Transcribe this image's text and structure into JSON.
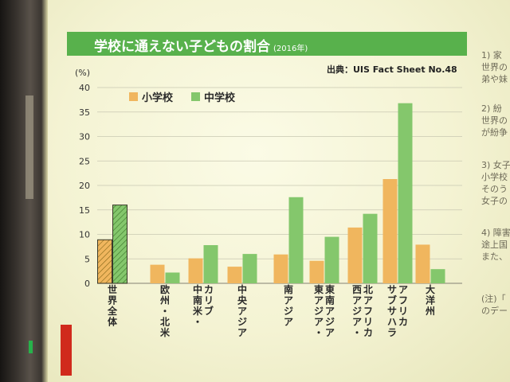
{
  "slide": {
    "title": "学校に通えない子どもの割合",
    "title_year": "(2016年)",
    "source": "出典：UIS Fact Sheet No.48",
    "side_notes": [
      "1) 家\n世界の\n弟や妹",
      "2) 紛\n世界の\nが紛争",
      "3) 女子\n小学校\nそのう\n女子の",
      "4) 障害\n途上国\nまた、",
      "(注)「\nのデー"
    ]
  },
  "chart_data": {
    "type": "bar",
    "title": "学校に通えない子どもの割合",
    "ylabel": "(%)",
    "ylim": [
      0,
      40
    ],
    "yticks": [
      0,
      5,
      10,
      15,
      20,
      25,
      30,
      35,
      40
    ],
    "grid": true,
    "legend_position": "top-left",
    "categories": [
      "世界全体",
      "欧州・北米",
      "中南米・カリブ",
      "中央アジア",
      "南アジア",
      "東アジア・東南アジア",
      "西アジア・北アフリカ",
      "サブサハラアフリカ",
      "大洋州"
    ],
    "category_labels": [
      [
        "世界全体"
      ],
      [
        "欧州・北米"
      ],
      [
        "中南米・",
        "カリブ"
      ],
      [
        "中央アジア"
      ],
      [
        "南アジア"
      ],
      [
        "東アジア・",
        "東南アジア"
      ],
      [
        "西アジア・",
        "北アフリカ"
      ],
      [
        "サブサハラ",
        "アフリカ"
      ],
      [
        "大洋州"
      ]
    ],
    "highlight_category": "世界全体",
    "series": [
      {
        "name": "小学校",
        "color": "#f0b65e",
        "values": [
          8.9,
          3.8,
          5.1,
          3.4,
          5.9,
          4.6,
          11.4,
          21.3,
          7.9
        ]
      },
      {
        "name": "中学校",
        "color": "#84c76c",
        "values": [
          16.0,
          2.2,
          7.8,
          6.0,
          17.6,
          9.5,
          14.2,
          36.8,
          2.9
        ]
      }
    ]
  }
}
